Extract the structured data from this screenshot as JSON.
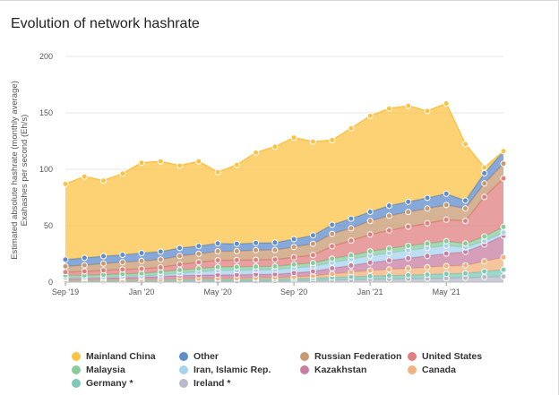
{
  "title": "Evolution of network hashrate",
  "chart_data": {
    "type": "area",
    "stacked": true,
    "x": [
      "2019-09",
      "2019-10",
      "2019-11",
      "2019-12",
      "2020-01",
      "2020-02",
      "2020-03",
      "2020-04",
      "2020-05",
      "2020-06",
      "2020-07",
      "2020-08",
      "2020-09",
      "2020-10",
      "2020-11",
      "2020-12",
      "2021-01",
      "2021-02",
      "2021-03",
      "2021-04",
      "2021-05",
      "2021-06",
      "2021-07",
      "2021-08"
    ],
    "x_tick_labels": [
      "Sep '19",
      "Jan '20",
      "May '20",
      "Sep '20",
      "Jan '21",
      "May '21"
    ],
    "ylabel_line1": "Estimated absolute hashrate (monthly average)",
    "ylabel_line2": "Exahashes per second (Eh/s)",
    "ylim": [
      0,
      200
    ],
    "yticks": [
      0,
      50,
      100,
      150,
      200
    ],
    "grid": true,
    "legend_position": "bottom",
    "series": [
      {
        "name": "Ireland *",
        "color": "#b9b9c9",
        "values": [
          0.5,
          0.5,
          0.6,
          0.6,
          0.6,
          0.7,
          0.8,
          0.8,
          0.9,
          0.9,
          1,
          1,
          1.3,
          1.5,
          2,
          2.3,
          2.5,
          2.8,
          3,
          3.2,
          3.5,
          3.8,
          4.5,
          5
        ]
      },
      {
        "name": "Germany *",
        "color": "#7ccab7",
        "values": [
          1,
          1,
          1.1,
          1.1,
          1.2,
          1.2,
          1.3,
          1.4,
          1.5,
          1.5,
          1.6,
          1.7,
          1.8,
          2,
          2.3,
          2.5,
          2.8,
          3,
          3.2,
          3.5,
          3.8,
          4,
          5,
          6
        ]
      },
      {
        "name": "Canada",
        "color": "#f1b37e",
        "values": [
          0.5,
          0.5,
          0.5,
          0.6,
          0.6,
          0.7,
          0.8,
          0.9,
          1,
          1.1,
          1.2,
          1.3,
          1.5,
          2,
          3,
          4,
          5,
          5.5,
          6,
          6.5,
          7,
          7,
          9,
          11
        ]
      },
      {
        "name": "Kazakhstan",
        "color": "#c87fa2",
        "values": [
          1.5,
          1.5,
          1.5,
          1.8,
          2,
          2.5,
          3,
          3,
          3,
          3,
          3,
          3,
          3.5,
          4,
          5,
          6,
          7,
          8,
          9,
          10,
          11,
          12,
          15,
          19
        ]
      },
      {
        "name": "Iran, Islamic Rep.",
        "color": "#a7d3ef",
        "values": [
          0.5,
          0.5,
          0.6,
          0.8,
          1,
          1.5,
          2,
          3,
          4,
          4,
          4,
          4,
          4.5,
          4.5,
          5,
          5.5,
          6,
          6.5,
          7,
          7,
          7,
          4,
          3,
          3
        ]
      },
      {
        "name": "Malaysia",
        "color": "#89cc9a",
        "values": [
          2,
          2,
          2.2,
          2.3,
          2.4,
          2.5,
          2.8,
          3,
          3,
          3,
          3,
          3,
          3,
          3,
          3.5,
          3.5,
          4,
          4,
          4,
          4,
          4,
          3.5,
          4,
          5
        ]
      },
      {
        "name": "United States",
        "color": "#e07f7f",
        "values": [
          3,
          3.5,
          4,
          4,
          4,
          4,
          5,
          5.5,
          6,
          6,
          6,
          6,
          6.5,
          7,
          11,
          13,
          15,
          16,
          17,
          18,
          19,
          20,
          35,
          43
        ]
      },
      {
        "name": "Russian Federation",
        "color": "#c99a72",
        "values": [
          5,
          5.5,
          6,
          6.5,
          7,
          7,
          7.5,
          7.5,
          8,
          8,
          8.5,
          8.5,
          9,
          10,
          11,
          11,
          12,
          13,
          13,
          13,
          13,
          11,
          12,
          13
        ]
      },
      {
        "name": "Other",
        "color": "#5f8ccd",
        "values": [
          6,
          6.5,
          6.5,
          6.5,
          7,
          7,
          7,
          7,
          7,
          6.5,
          6.5,
          6.5,
          7,
          7.5,
          8,
          8.5,
          8,
          9,
          9,
          9.5,
          10,
          7,
          9,
          11
        ]
      },
      {
        "name": "Mainland China",
        "color": "#fbc345",
        "values": [
          67,
          72,
          67,
          72,
          80,
          80,
          73,
          75,
          63,
          70,
          80,
          85,
          90,
          83,
          75,
          80,
          85,
          86,
          85,
          77,
          80,
          50,
          5,
          0
        ]
      }
    ]
  },
  "legend": [
    {
      "name": "Mainland China",
      "color": "#fbc345"
    },
    {
      "name": "Other",
      "color": "#5f8ccd"
    },
    {
      "name": "Russian Federation",
      "color": "#c99a72"
    },
    {
      "name": "United States",
      "color": "#e07f7f"
    },
    {
      "name": "Malaysia",
      "color": "#89cc9a"
    },
    {
      "name": "Iran, Islamic Rep.",
      "color": "#a7d3ef"
    },
    {
      "name": "Kazakhstan",
      "color": "#c87fa2"
    },
    {
      "name": "Canada",
      "color": "#f1b37e"
    },
    {
      "name": "Germany *",
      "color": "#7ccab7"
    },
    {
      "name": "Ireland *",
      "color": "#b9b9c9"
    }
  ]
}
